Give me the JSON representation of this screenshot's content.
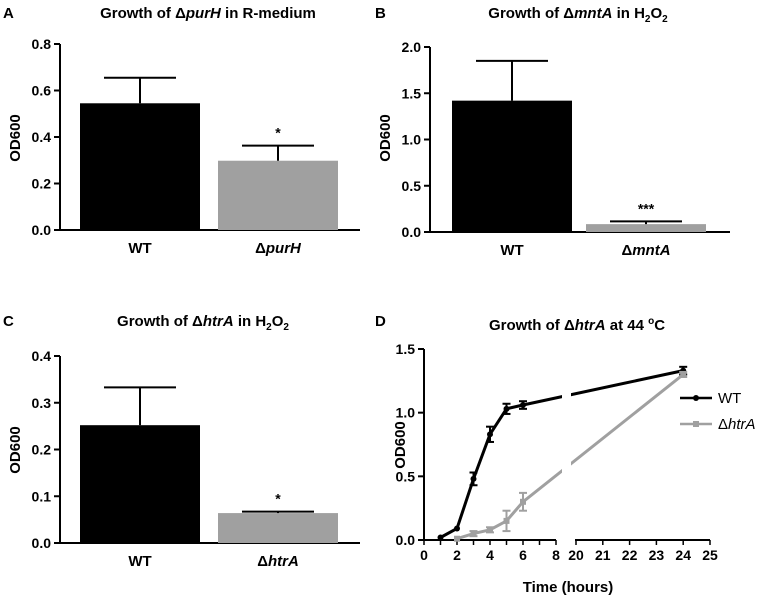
{
  "colors": {
    "wt": "#000000",
    "mutant": "#a0a0a0",
    "axis": "#000000"
  },
  "chart_data": [
    {
      "panel": "A",
      "type": "bar",
      "title_pre": "Growth of Δ",
      "title_it": "purH",
      "title_post": " in R-medium",
      "ylabel": "OD600",
      "ylim": [
        0,
        0.8
      ],
      "yticks": [
        0.0,
        0.2,
        0.4,
        0.6,
        0.8
      ],
      "ytick_labels": [
        "0.0",
        "0.2",
        "0.4",
        "0.6",
        "0.8"
      ],
      "categories": [
        {
          "pre": "WT",
          "it": ""
        },
        {
          "pre": "Δ",
          "it": "purH"
        }
      ],
      "values": [
        0.545,
        0.298
      ],
      "errors": [
        0.11,
        0.065
      ],
      "significance": [
        "",
        "*"
      ]
    },
    {
      "panel": "B",
      "type": "bar",
      "title_pre": "Growth of Δ",
      "title_it": "mntA",
      "title_post": " in H",
      "title_sub": "2",
      "title_end": "O",
      "title_sub2": "2",
      "ylabel": "OD600",
      "ylim": [
        0,
        2.0
      ],
      "yticks": [
        0.0,
        0.5,
        1.0,
        1.5,
        2.0
      ],
      "ytick_labels": [
        "0.0",
        "0.5",
        "1.0",
        "1.5",
        "2.0"
      ],
      "categories": [
        {
          "pre": "WT",
          "it": ""
        },
        {
          "pre": "Δ",
          "it": "mntA"
        }
      ],
      "values": [
        1.42,
        0.085
      ],
      "errors": [
        0.43,
        0.03
      ],
      "significance": [
        "",
        "***"
      ]
    },
    {
      "panel": "C",
      "type": "bar",
      "title_pre": "Growth of Δ",
      "title_it": "htrA",
      "title_post": " in H",
      "title_sub": "2",
      "title_end": "O",
      "title_sub2": "2",
      "ylabel": "OD600",
      "ylim": [
        0,
        0.4
      ],
      "yticks": [
        0.0,
        0.1,
        0.2,
        0.3,
        0.4
      ],
      "ytick_labels": [
        "0.0",
        "0.1",
        "0.2",
        "0.3",
        "0.4"
      ],
      "categories": [
        {
          "pre": "WT",
          "it": ""
        },
        {
          "pre": "Δ",
          "it": "htrA"
        }
      ],
      "values": [
        0.252,
        0.064
      ],
      "errors": [
        0.081,
        0.003
      ],
      "significance": [
        "",
        "*"
      ]
    },
    {
      "panel": "D",
      "type": "line",
      "title_pre": "Growth of Δ",
      "title_it": "htrA",
      "title_post": " at 44 ",
      "title_sup": "o",
      "title_end": "C",
      "xlabel": "Time (hours)",
      "ylabel": "OD600",
      "ylim": [
        0,
        1.5
      ],
      "yticks": [
        0.0,
        0.5,
        1.0,
        1.5
      ],
      "ytick_labels": [
        "0.0",
        "0.5",
        "1.0",
        "1.5"
      ],
      "x_segments": [
        [
          0,
          8
        ],
        [
          20,
          25
        ]
      ],
      "xticks": [
        0,
        1,
        2,
        3,
        4,
        5,
        6,
        7,
        8,
        20,
        21,
        22,
        23,
        24,
        25
      ],
      "xtick_labels": [
        "0",
        "2",
        "4",
        "6",
        "8",
        "20",
        "21",
        "22",
        "23",
        "24",
        "25"
      ],
      "xtick_label_values": [
        0,
        2,
        4,
        6,
        8,
        20,
        21,
        22,
        23,
        24,
        25
      ],
      "series": [
        {
          "name": "WT",
          "name_it": "",
          "x": [
            1,
            2,
            3,
            4,
            5,
            6,
            24
          ],
          "y": [
            0.02,
            0.09,
            0.48,
            0.83,
            1.03,
            1.06,
            1.33
          ],
          "err": [
            0.0,
            0.0,
            0.05,
            0.06,
            0.04,
            0.03,
            0.03
          ]
        },
        {
          "name": "Δ",
          "name_it": "htrA",
          "x": [
            2,
            3,
            4,
            5,
            6,
            24
          ],
          "y": [
            0.01,
            0.05,
            0.08,
            0.15,
            0.3,
            1.3
          ],
          "err": [
            0.0,
            0.02,
            0.02,
            0.08,
            0.07,
            0.02
          ]
        }
      ],
      "legend_position": "right"
    }
  ]
}
